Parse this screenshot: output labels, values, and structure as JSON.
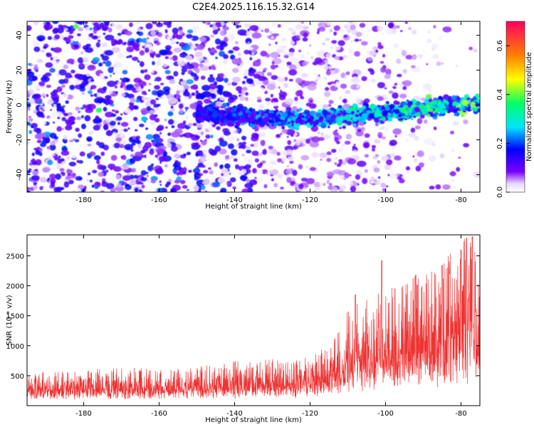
{
  "title": "C2E4.2025.116.15.32.G14",
  "chart_data": [
    {
      "type": "heatmap",
      "xlabel": "Height of straight line (km)",
      "ylabel": "Frequency (Hz)",
      "xlim": [
        -195,
        -75
      ],
      "ylim": [
        -50,
        48
      ],
      "x_ticks": [
        -180,
        -160,
        -140,
        -120,
        -100,
        -80
      ],
      "y_ticks": [
        -40,
        -20,
        0,
        20,
        40
      ],
      "ridge": {
        "x": [
          -195,
          -175,
          -150,
          -140,
          -130,
          -120,
          -110,
          -100,
          -90,
          -80,
          -75
        ],
        "frequency": [
          -2,
          -3,
          -4,
          -6,
          -8,
          -8,
          -6,
          -4,
          -2,
          0,
          1
        ]
      },
      "colorbar": {
        "label": "Normalized spectral amplitude",
        "range": [
          0,
          0.7
        ],
        "ticks": [
          0.0,
          0.2,
          0.4,
          0.6
        ],
        "tick_labels": [
          "0.0",
          "0.2",
          "0.4",
          "0.6"
        ],
        "colors": [
          "#ffffff",
          "#7a00ff",
          "#0000ff",
          "#00e5ff",
          "#00ff66",
          "#ffff00",
          "#ff8000",
          "#ff0060"
        ]
      }
    },
    {
      "type": "line",
      "xlabel": "Height of straight line (km)",
      "ylabel": "SNR (10 * v/v)",
      "xlim": [
        -195,
        -75
      ],
      "ylim": [
        0,
        2850
      ],
      "x_ticks": [
        -180,
        -160,
        -140,
        -120,
        -100,
        -80
      ],
      "y_ticks": [
        500,
        1000,
        1500,
        2000,
        2500
      ],
      "line_color": "#ee3333",
      "envelope": {
        "x": [
          -195,
          -180,
          -170,
          -160,
          -150,
          -140,
          -130,
          -125,
          -120,
          -115,
          -110,
          -105,
          -100,
          -95,
          -90,
          -85,
          -80,
          -77,
          -75
        ],
        "snr_max": [
          550,
          600,
          650,
          600,
          650,
          750,
          800,
          750,
          850,
          1000,
          1600,
          1800,
          2050,
          2150,
          2250,
          2500,
          2800,
          2850,
          2000
        ],
        "snr_min": [
          50,
          50,
          50,
          50,
          50,
          50,
          50,
          50,
          60,
          80,
          80,
          90,
          90,
          100,
          100,
          100,
          100,
          100,
          100
        ]
      },
      "peaks": [
        {
          "x": -108,
          "snr": 1850
        },
        {
          "x": -101,
          "snr": 2420
        },
        {
          "x": -97.5,
          "snr": 1950
        },
        {
          "x": -92,
          "snr": 2180
        },
        {
          "x": -85,
          "snr": 2340
        },
        {
          "x": -83,
          "snr": 2200
        },
        {
          "x": -80,
          "snr": 2600
        },
        {
          "x": -78.5,
          "snr": 2800
        },
        {
          "x": -77,
          "snr": 2820
        }
      ]
    }
  ]
}
